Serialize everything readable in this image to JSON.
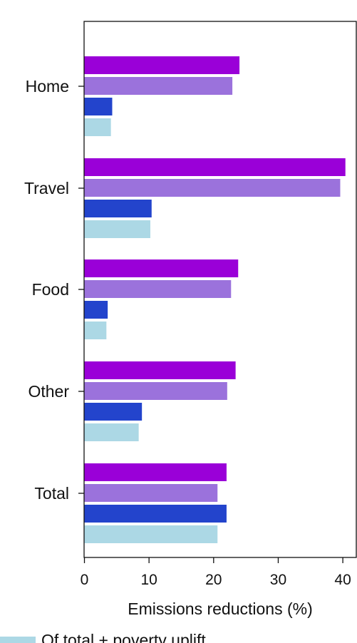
{
  "chart_data": {
    "type": "bar",
    "orientation": "horizontal",
    "categories": [
      "Home",
      "Travel",
      "Food",
      "Other",
      "Total"
    ],
    "series": [
      {
        "color": "#9a00d8",
        "values": [
          24.0,
          40.4,
          23.8,
          23.4,
          22.0
        ]
      },
      {
        "color": "#9b72dc",
        "values": [
          22.9,
          39.6,
          22.7,
          22.1,
          20.6
        ]
      },
      {
        "color": "#2344cc",
        "values": [
          4.3,
          10.4,
          3.6,
          8.9,
          22.0
        ]
      },
      {
        "name": "Of total + poverty uplift",
        "color": "#acd8e5",
        "values": [
          4.1,
          10.2,
          3.4,
          8.4,
          20.6
        ]
      }
    ],
    "xlabel": "Emissions reductions (%)",
    "ylabel": "",
    "xlim": [
      0,
      40.5
    ],
    "xticks": [
      0,
      10,
      20,
      30,
      40
    ],
    "grid": false,
    "legend_position": "bottom-left"
  }
}
